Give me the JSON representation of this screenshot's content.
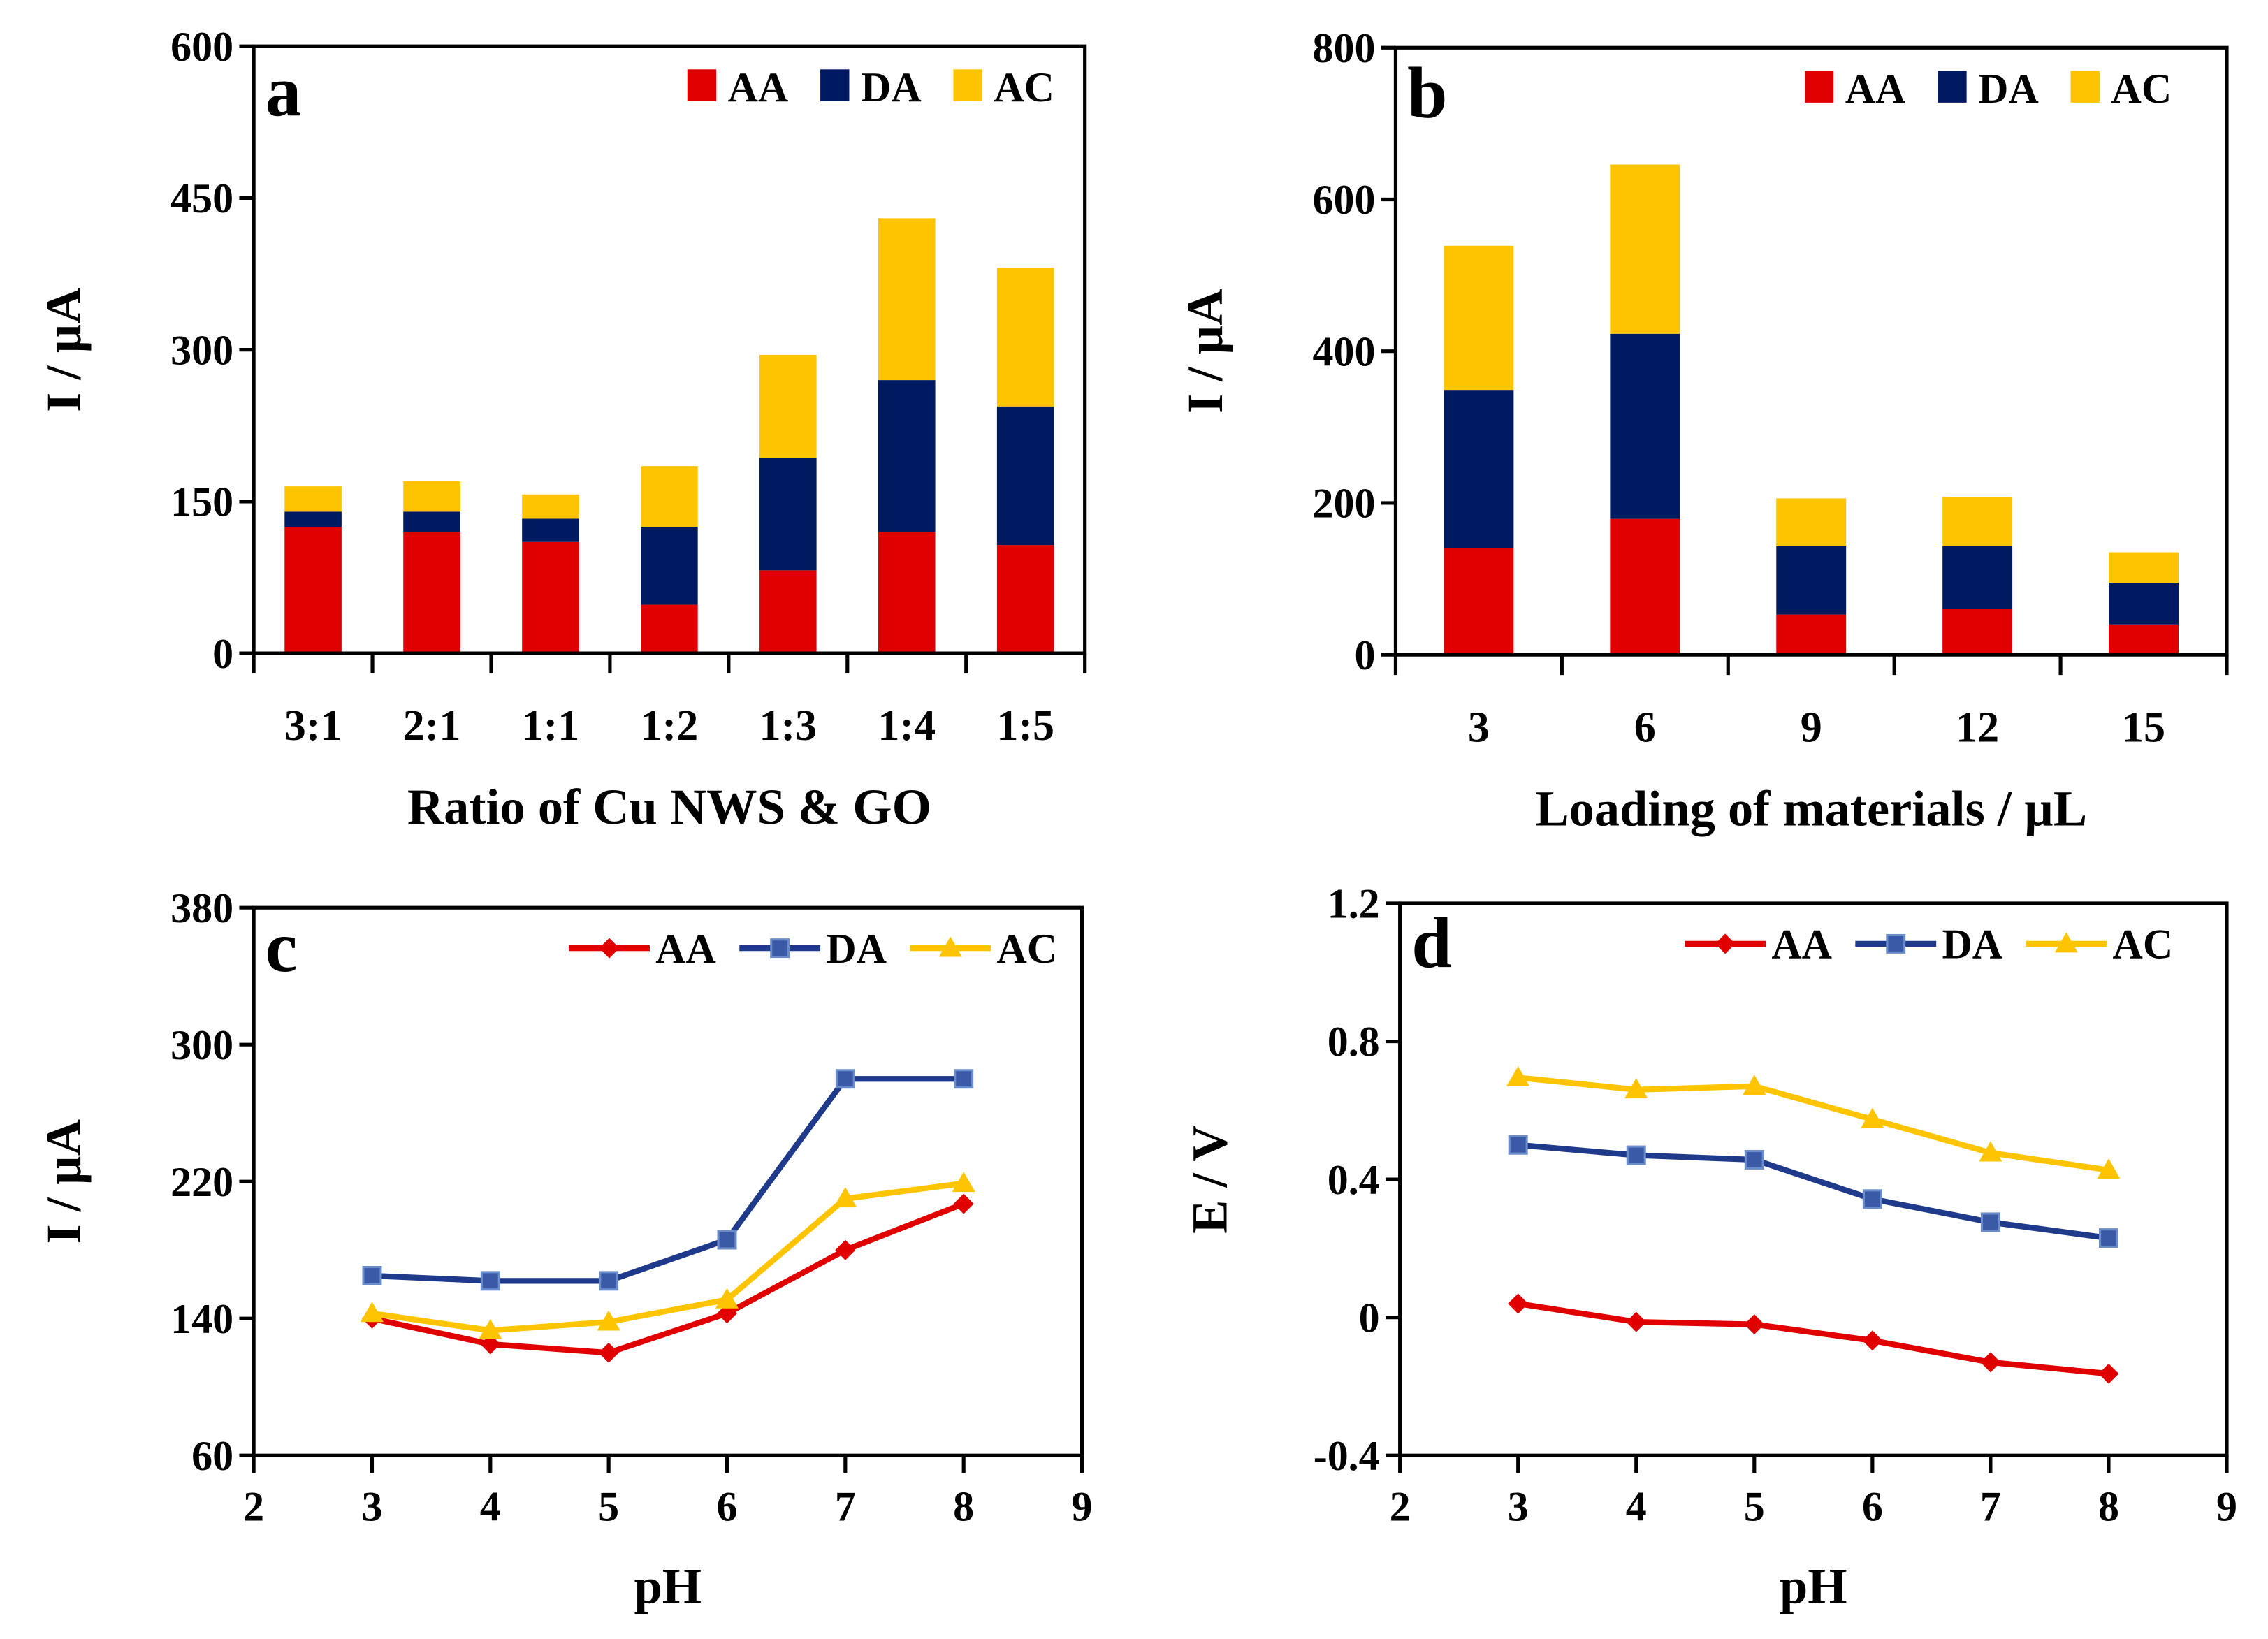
{
  "colors": {
    "AA": "#e00000",
    "DA": "#001a62",
    "AC": "#ffc400"
  },
  "chart_data": [
    {
      "panel": "a",
      "type": "bar",
      "stacked": true,
      "xlabel": "Ratio of Cu NWS & GO",
      "ylabel": "I / µA",
      "ylim": [
        0,
        600
      ],
      "yticks": [
        0,
        150,
        300,
        450,
        600
      ],
      "categories": [
        "3:1",
        "2:1",
        "1:1",
        "1:2",
        "1:3",
        "1:4",
        "1:5"
      ],
      "series": [
        {
          "name": "AA",
          "values": [
            125,
            120,
            110,
            48,
            82,
            120,
            107
          ]
        },
        {
          "name": "DA",
          "values": [
            15,
            20,
            23,
            77,
            111,
            150,
            137
          ]
        },
        {
          "name": "AC",
          "values": [
            25,
            30,
            24,
            60,
            102,
            160,
            137
          ]
        }
      ],
      "legend": "top-right"
    },
    {
      "panel": "b",
      "type": "bar",
      "stacked": true,
      "xlabel": "Loading of materials / µL",
      "ylabel": "I / µA",
      "ylim": [
        0,
        800
      ],
      "yticks": [
        0,
        200,
        400,
        600,
        800
      ],
      "categories": [
        "3",
        "6",
        "9",
        "12",
        "15"
      ],
      "series": [
        {
          "name": "AA",
          "values": [
            141,
            179,
            53,
            60,
            40
          ]
        },
        {
          "name": "DA",
          "values": [
            208,
            244,
            90,
            83,
            55
          ]
        },
        {
          "name": "AC",
          "values": [
            190,
            223,
            63,
            65,
            40
          ]
        }
      ],
      "legend": "top-right"
    },
    {
      "panel": "c",
      "type": "line",
      "xlabel": "pH",
      "ylabel": "I / µA",
      "xlim": [
        2,
        9
      ],
      "xticks": [
        2,
        3,
        4,
        5,
        6,
        7,
        8,
        9
      ],
      "ylim": [
        60,
        380
      ],
      "yticks": [
        60,
        140,
        220,
        300,
        380
      ],
      "x": [
        3,
        4,
        5,
        6,
        7,
        8
      ],
      "series": [
        {
          "name": "AA",
          "marker": "diamond",
          "values": [
            140,
            125,
            120,
            143,
            180,
            207
          ]
        },
        {
          "name": "DA",
          "marker": "square",
          "values": [
            165,
            162,
            162,
            186,
            280,
            280
          ]
        },
        {
          "name": "AC",
          "marker": "triangle",
          "values": [
            143,
            133,
            138,
            151,
            210,
            219
          ]
        }
      ],
      "legend": "top-right"
    },
    {
      "panel": "d",
      "type": "line",
      "xlabel": "pH",
      "ylabel": "E / V",
      "xlim": [
        2,
        9
      ],
      "xticks": [
        2,
        3,
        4,
        5,
        6,
        7,
        8,
        9
      ],
      "ylim": [
        -0.4,
        1.2
      ],
      "yticks": [
        -0.4,
        0,
        0.4,
        0.8,
        1.2
      ],
      "x": [
        3,
        4,
        5,
        6,
        7,
        8
      ],
      "series": [
        {
          "name": "AA",
          "marker": "diamond",
          "values": [
            0.04,
            -0.013,
            -0.02,
            -0.067,
            -0.13,
            -0.163
          ]
        },
        {
          "name": "DA",
          "marker": "square",
          "values": [
            0.5,
            0.47,
            0.457,
            0.343,
            0.276,
            0.23
          ]
        },
        {
          "name": "AC",
          "marker": "triangle",
          "values": [
            0.695,
            0.66,
            0.67,
            0.574,
            0.477,
            0.427
          ]
        }
      ],
      "legend": "top-right"
    }
  ]
}
